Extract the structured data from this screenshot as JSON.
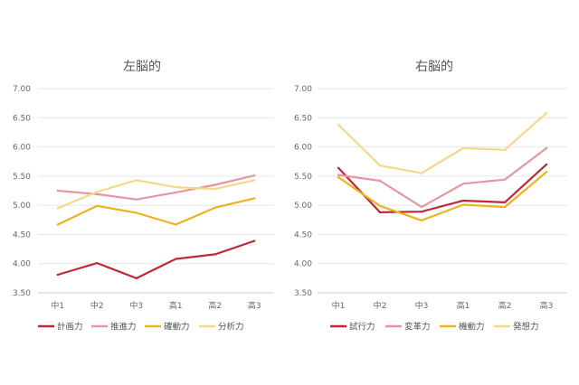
{
  "chart_data": [
    {
      "type": "line",
      "title": "左脳的",
      "categories": [
        "中1",
        "中2",
        "中3",
        "高1",
        "高2",
        "高3"
      ],
      "y_ticks": [
        "7.00",
        "6.50",
        "6.00",
        "5.50",
        "5.00",
        "4.50",
        "4.00",
        "3.50"
      ],
      "ylim": [
        3.5,
        7.0
      ],
      "xlabel": "",
      "ylabel": "",
      "grid": true,
      "legend_position": "bottom",
      "series": [
        {
          "name": "計画力",
          "color": "#c0283a",
          "values": [
            3.81,
            4.01,
            3.75,
            4.08,
            4.16,
            4.39
          ]
        },
        {
          "name": "推進力",
          "color": "#e8959f",
          "values": [
            5.25,
            5.19,
            5.1,
            5.22,
            5.35,
            5.51
          ]
        },
        {
          "name": "確動力",
          "color": "#edb21e",
          "values": [
            4.67,
            4.99,
            4.87,
            4.67,
            4.96,
            5.12
          ]
        },
        {
          "name": "分析力",
          "color": "#f5d98a",
          "values": [
            4.95,
            5.23,
            5.43,
            5.31,
            5.28,
            5.43
          ]
        }
      ]
    },
    {
      "type": "line",
      "title": "右脳的",
      "categories": [
        "中1",
        "中2",
        "中3",
        "高1",
        "高2",
        "高3"
      ],
      "y_ticks": [
        "7.00",
        "6.50",
        "6.00",
        "5.50",
        "5.00",
        "4.50",
        "4.00",
        "3.50"
      ],
      "ylim": [
        3.5,
        7.0
      ],
      "xlabel": "",
      "ylabel": "",
      "grid": true,
      "legend_position": "bottom",
      "series": [
        {
          "name": "試行力",
          "color": "#c0283a",
          "values": [
            5.64,
            4.88,
            4.89,
            5.08,
            5.05,
            5.7
          ]
        },
        {
          "name": "変革力",
          "color": "#e8959f",
          "values": [
            5.52,
            5.42,
            4.97,
            5.37,
            5.44,
            5.98
          ]
        },
        {
          "name": "機動力",
          "color": "#edb21e",
          "values": [
            5.48,
            4.99,
            4.74,
            5.01,
            4.97,
            5.57
          ]
        },
        {
          "name": "発想力",
          "color": "#f5d98a",
          "values": [
            6.38,
            5.68,
            5.55,
            5.98,
            5.95,
            6.58
          ]
        }
      ]
    }
  ]
}
